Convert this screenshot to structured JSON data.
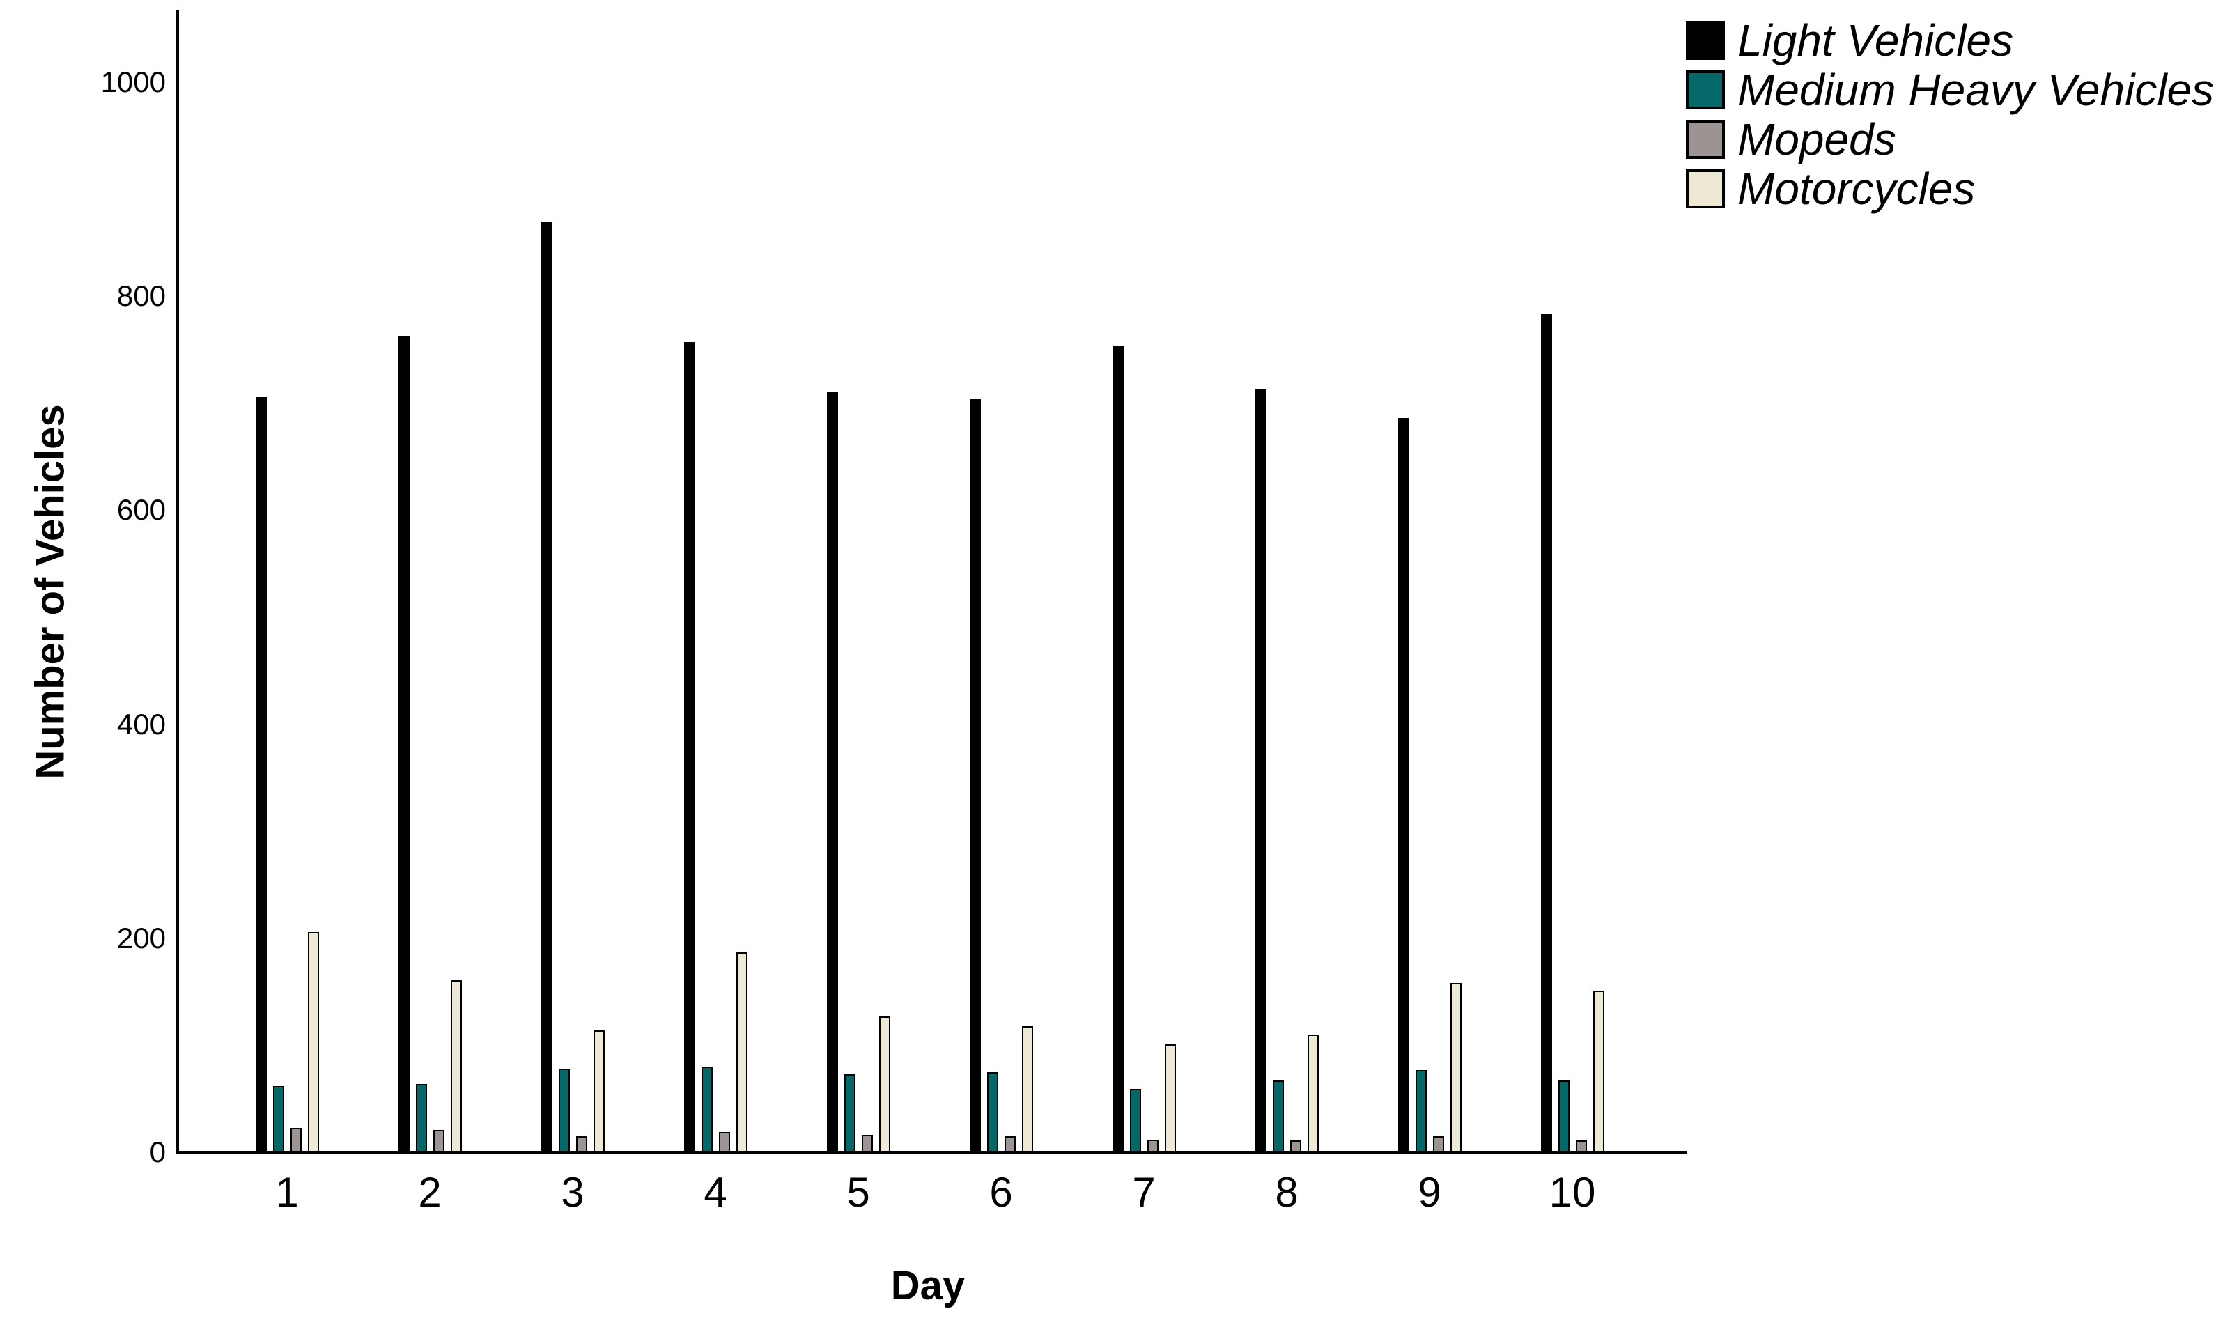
{
  "chart_data": {
    "type": "bar",
    "title": "",
    "xlabel": "Day",
    "ylabel": "Number of Vehicles",
    "categories": [
      "1",
      "2",
      "3",
      "4",
      "5",
      "6",
      "7",
      "8",
      "9",
      "10"
    ],
    "series": [
      {
        "name": "Light Vehicles",
        "color": "#000000",
        "values": [
          706,
          763,
          870,
          757,
          711,
          704,
          754,
          713,
          686,
          783
        ]
      },
      {
        "name": "Medium Heavy Vehicles",
        "color": "#046868",
        "values": [
          62,
          64,
          78,
          80,
          73,
          75,
          59,
          67,
          77,
          67
        ]
      },
      {
        "name": "Mopeds",
        "color": "#9B9493",
        "values": [
          23,
          21,
          15,
          19,
          16,
          15,
          12,
          11,
          15,
          11
        ]
      },
      {
        "name": "Motorcycles",
        "color": "#EEE9D4",
        "values": [
          206,
          161,
          114,
          187,
          127,
          118,
          101,
          110,
          158,
          151
        ]
      }
    ],
    "ylim": [
      0,
      1050
    ],
    "yticks": [
      0,
      200,
      400,
      600,
      800,
      1000
    ],
    "grid": false,
    "legend_position": "top-right",
    "legend_text_style": "italic",
    "bar_outline_color": "#000000",
    "axis_color": "#000000",
    "background": "#FFFFFF"
  }
}
